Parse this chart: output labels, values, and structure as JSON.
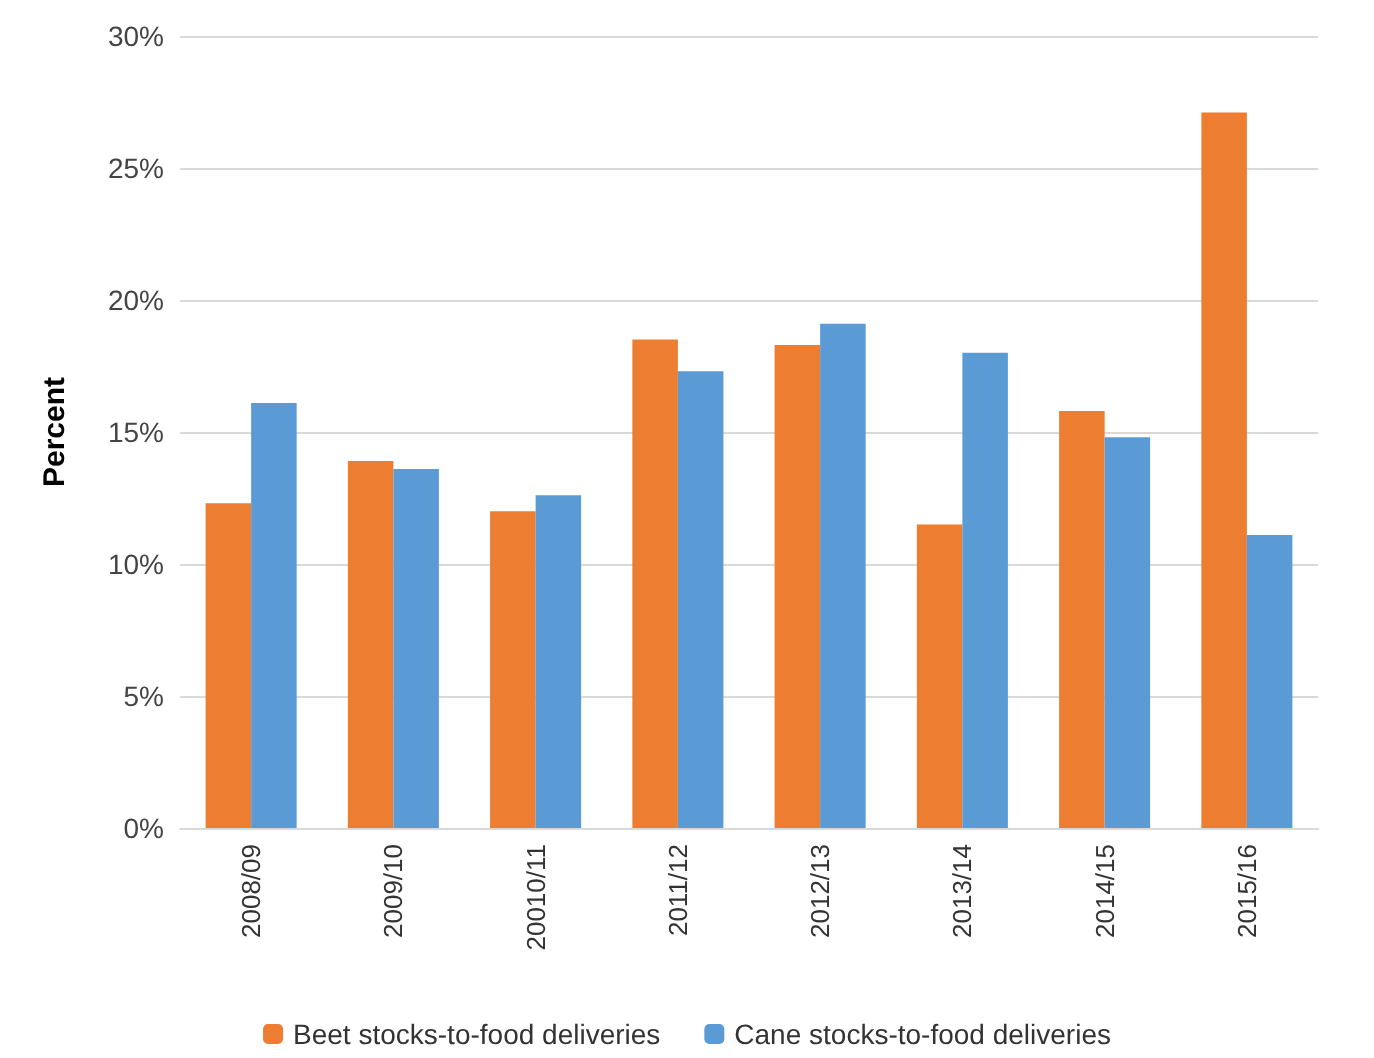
{
  "chart_data": {
    "type": "bar",
    "ylabel": "Percent",
    "categories": [
      "2008/09",
      "2009/10",
      "20010/11",
      "2011/12",
      "2012/13",
      "2013/14",
      "2014/15",
      "2015/16"
    ],
    "series": [
      {
        "name": "Beet stocks-to-food deliveries",
        "color": "#ed7d31",
        "values": [
          12.3,
          13.9,
          12.0,
          18.5,
          18.3,
          11.5,
          15.8,
          27.1
        ]
      },
      {
        "name": "Cane stocks-to-food deliveries",
        "color": "#5b9bd5",
        "values": [
          16.1,
          13.6,
          12.6,
          17.3,
          19.1,
          18.0,
          14.8,
          11.1
        ]
      }
    ],
    "ylim": [
      0,
      30
    ],
    "yticks": [
      {
        "value": 0,
        "label": "0%"
      },
      {
        "value": 5,
        "label": "5%"
      },
      {
        "value": 10,
        "label": "10%"
      },
      {
        "value": 15,
        "label": "15%"
      },
      {
        "value": 20,
        "label": "20%"
      },
      {
        "value": 25,
        "label": "25%"
      },
      {
        "value": 30,
        "label": "30%"
      }
    ],
    "grid": "y",
    "legend": "bottom"
  }
}
